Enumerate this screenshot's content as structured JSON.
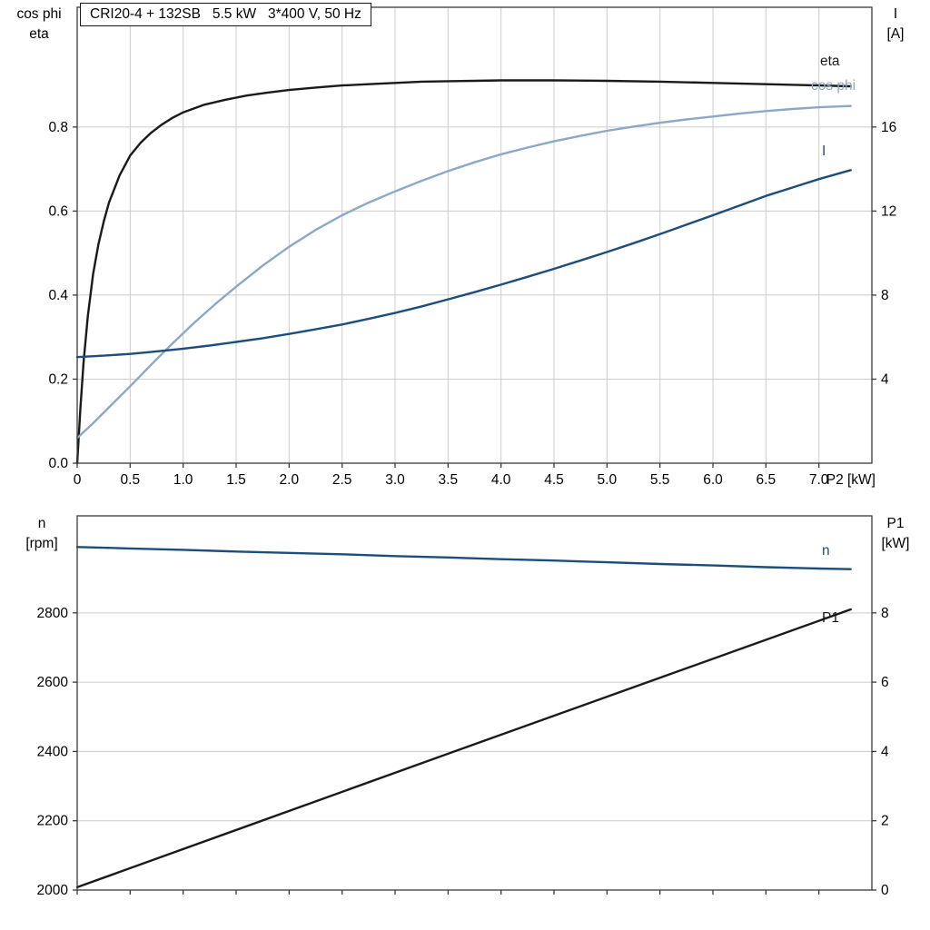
{
  "colors": {
    "black_curve": "#1a1a1a",
    "light_blue_curve": "#8ca8c8",
    "dark_blue_curve": "#1c4e7d",
    "grid": "#cccccc",
    "frame": "#3a3a3a"
  },
  "chart_data": [
    {
      "type": "line",
      "title": "CRI20-4 + 132SB   5.5 kW   3*400 V, 50 Hz",
      "x": {
        "min": 0,
        "max": 7.5,
        "ticks": [
          0,
          0.5,
          1.0,
          1.5,
          2.0,
          2.5,
          3.0,
          3.5,
          4.0,
          4.5,
          5.0,
          5.5,
          6.0,
          6.5,
          7.0
        ],
        "tick_labels": [
          "0",
          "0.5",
          "1.0",
          "1.5",
          "2.0",
          "2.5",
          "3.0",
          "3.5",
          "4.0",
          "4.5",
          "5.0",
          "5.5",
          "6.0",
          "6.5",
          "7.0"
        ],
        "axis_label": "P2 [kW]"
      },
      "left_axis": {
        "label_lines": [
          "cos phi",
          "eta"
        ],
        "min": 0,
        "max": 1.085,
        "ticks": [
          0.0,
          0.2,
          0.4,
          0.6,
          0.8
        ],
        "tick_labels": [
          "0.0",
          "0.2",
          "0.4",
          "0.6",
          "0.8"
        ]
      },
      "right_axis": {
        "label_lines": [
          "I",
          "[A]"
        ],
        "min": 0,
        "max": 21.7,
        "ticks": [
          4,
          8,
          12,
          16
        ],
        "tick_labels": [
          "4",
          "8",
          "12",
          "16"
        ]
      },
      "grid": {
        "vertical": true,
        "horizontal": true,
        "color": "#cccccc"
      },
      "series": [
        {
          "name": "eta",
          "axis": "left",
          "color": "#1a1a1a",
          "points": [
            [
              0,
              0
            ],
            [
              0.03,
              0.13
            ],
            [
              0.06,
              0.24
            ],
            [
              0.1,
              0.35
            ],
            [
              0.15,
              0.45
            ],
            [
              0.2,
              0.52
            ],
            [
              0.25,
              0.575
            ],
            [
              0.3,
              0.62
            ],
            [
              0.4,
              0.685
            ],
            [
              0.5,
              0.732
            ],
            [
              0.6,
              0.763
            ],
            [
              0.7,
              0.787
            ],
            [
              0.8,
              0.806
            ],
            [
              0.9,
              0.822
            ],
            [
              1,
              0.835
            ],
            [
              1.2,
              0.853
            ],
            [
              1.4,
              0.865
            ],
            [
              1.6,
              0.875
            ],
            [
              1.8,
              0.882
            ],
            [
              2,
              0.888
            ],
            [
              2.25,
              0.894
            ],
            [
              2.5,
              0.899
            ],
            [
              2.75,
              0.902
            ],
            [
              3,
              0.905
            ],
            [
              3.25,
              0.908
            ],
            [
              3.5,
              0.909
            ],
            [
              3.75,
              0.91
            ],
            [
              4,
              0.911
            ],
            [
              4.5,
              0.911
            ],
            [
              5,
              0.91
            ],
            [
              5.5,
              0.908
            ],
            [
              6,
              0.905
            ],
            [
              6.5,
              0.902
            ],
            [
              7,
              0.899
            ],
            [
              7.3,
              0.897
            ]
          ]
        },
        {
          "name": "cos phi",
          "axis": "left",
          "color": "#8ca8c8",
          "points": [
            [
              0,
              0.06
            ],
            [
              0.15,
              0.095
            ],
            [
              0.3,
              0.133
            ],
            [
              0.5,
              0.183
            ],
            [
              0.7,
              0.235
            ],
            [
              0.9,
              0.285
            ],
            [
              1.1,
              0.333
            ],
            [
              1.3,
              0.378
            ],
            [
              1.5,
              0.42
            ],
            [
              1.75,
              0.47
            ],
            [
              2,
              0.515
            ],
            [
              2.25,
              0.555
            ],
            [
              2.5,
              0.59
            ],
            [
              2.75,
              0.62
            ],
            [
              3,
              0.647
            ],
            [
              3.25,
              0.672
            ],
            [
              3.5,
              0.695
            ],
            [
              3.75,
              0.716
            ],
            [
              4,
              0.735
            ],
            [
              4.25,
              0.751
            ],
            [
              4.5,
              0.766
            ],
            [
              4.75,
              0.779
            ],
            [
              5,
              0.791
            ],
            [
              5.25,
              0.801
            ],
            [
              5.5,
              0.81
            ],
            [
              5.75,
              0.818
            ],
            [
              6,
              0.825
            ],
            [
              6.25,
              0.832
            ],
            [
              6.5,
              0.838
            ],
            [
              6.75,
              0.843
            ],
            [
              7,
              0.847
            ],
            [
              7.3,
              0.85
            ]
          ]
        },
        {
          "name": "I",
          "axis": "right",
          "color": "#1c4e7d",
          "points": [
            [
              0,
              5.05
            ],
            [
              0.25,
              5.12
            ],
            [
              0.5,
              5.2
            ],
            [
              0.75,
              5.32
            ],
            [
              1,
              5.45
            ],
            [
              1.25,
              5.6
            ],
            [
              1.5,
              5.77
            ],
            [
              1.75,
              5.95
            ],
            [
              2,
              6.15
            ],
            [
              2.25,
              6.37
            ],
            [
              2.5,
              6.6
            ],
            [
              2.75,
              6.87
            ],
            [
              3,
              7.15
            ],
            [
              3.25,
              7.46
            ],
            [
              3.5,
              7.8
            ],
            [
              3.75,
              8.14
            ],
            [
              4,
              8.5
            ],
            [
              4.25,
              8.87
            ],
            [
              4.5,
              9.25
            ],
            [
              4.75,
              9.65
            ],
            [
              5,
              10.05
            ],
            [
              5.25,
              10.47
            ],
            [
              5.5,
              10.9
            ],
            [
              5.75,
              11.35
            ],
            [
              6,
              11.8
            ],
            [
              6.25,
              12.26
            ],
            [
              6.5,
              12.72
            ],
            [
              6.75,
              13.12
            ],
            [
              7,
              13.52
            ],
            [
              7.3,
              13.95
            ]
          ]
        }
      ]
    },
    {
      "type": "line",
      "title": "",
      "x": {
        "min": 0,
        "max": 7.5,
        "ticks": [
          0,
          0.5,
          1.0,
          1.5,
          2.0,
          2.5,
          3.0,
          3.5,
          4.0,
          4.5,
          5.0,
          5.5,
          6.0,
          6.5,
          7.0
        ],
        "tick_labels": [],
        "axis_label": ""
      },
      "left_axis": {
        "label_lines": [
          "n",
          "[rpm]"
        ],
        "min": 2000,
        "max": 3080,
        "ticks": [
          2000,
          2200,
          2400,
          2600,
          2800
        ],
        "tick_labels": [
          "2000",
          "2200",
          "2400",
          "2600",
          "2800"
        ]
      },
      "right_axis": {
        "label_lines": [
          "P1",
          "[kW]"
        ],
        "min": 0,
        "max": 10.8,
        "ticks": [
          0,
          2,
          4,
          6,
          8
        ],
        "tick_labels": [
          "0",
          "2",
          "4",
          "6",
          "8"
        ]
      },
      "grid": {
        "vertical": false,
        "horizontal": true,
        "color": "#cccccc"
      },
      "series": [
        {
          "name": "n",
          "axis": "left",
          "color": "#1c4e7d",
          "points": [
            [
              0,
              2990
            ],
            [
              0.5,
              2986
            ],
            [
              1,
              2982
            ],
            [
              1.5,
              2977
            ],
            [
              2,
              2973
            ],
            [
              2.5,
              2969
            ],
            [
              3,
              2964
            ],
            [
              3.5,
              2960
            ],
            [
              4,
              2955
            ],
            [
              4.5,
              2951
            ],
            [
              5,
              2946
            ],
            [
              5.5,
              2941
            ],
            [
              6,
              2937
            ],
            [
              6.5,
              2932
            ],
            [
              7,
              2928
            ],
            [
              7.3,
              2926
            ]
          ]
        },
        {
          "name": "P1",
          "axis": "right",
          "color": "#1a1a1a",
          "points": [
            [
              0,
              0.08
            ],
            [
              3.65,
              4.1
            ],
            [
              7.3,
              8.1
            ]
          ]
        }
      ]
    }
  ]
}
